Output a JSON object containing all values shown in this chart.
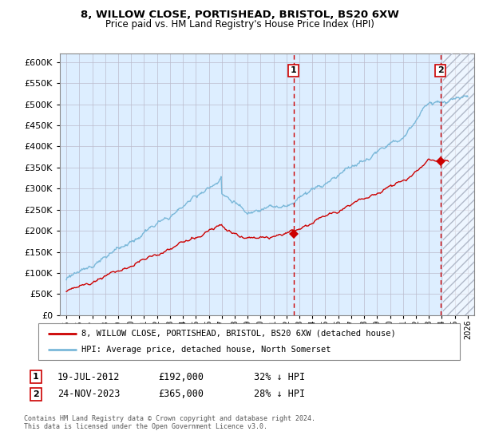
{
  "title1": "8, WILLOW CLOSE, PORTISHEAD, BRISTOL, BS20 6XW",
  "title2": "Price paid vs. HM Land Registry's House Price Index (HPI)",
  "ylim": [
    0,
    620000
  ],
  "yticks": [
    0,
    50000,
    100000,
    150000,
    200000,
    250000,
    300000,
    350000,
    400000,
    450000,
    500000,
    550000,
    600000
  ],
  "xlim_start": 1994.5,
  "xlim_end": 2026.5,
  "xticks": [
    1995,
    1996,
    1997,
    1998,
    1999,
    2000,
    2001,
    2002,
    2003,
    2004,
    2005,
    2006,
    2007,
    2008,
    2009,
    2010,
    2011,
    2012,
    2013,
    2014,
    2015,
    2016,
    2017,
    2018,
    2019,
    2020,
    2021,
    2022,
    2023,
    2024,
    2025,
    2026
  ],
  "hpi_color": "#7ab8d9",
  "price_color": "#cc0000",
  "marker1_date": 2012.55,
  "marker2_date": 2023.9,
  "sale1_price_val": 192000,
  "sale2_price_val": 365000,
  "sale1_date": "19-JUL-2012",
  "sale1_price": "£192,000",
  "sale1_hpi": "32% ↓ HPI",
  "sale2_date": "24-NOV-2023",
  "sale2_price": "£365,000",
  "sale2_hpi": "28% ↓ HPI",
  "legend1": "8, WILLOW CLOSE, PORTISHEAD, BRISTOL, BS20 6XW (detached house)",
  "legend2": "HPI: Average price, detached house, North Somerset",
  "footnote": "Contains HM Land Registry data © Crown copyright and database right 2024.\nThis data is licensed under the Open Government Licence v3.0.",
  "bg_color": "#ddeeff",
  "future_start": 2024.08,
  "grid_color": "#bbbbcc"
}
